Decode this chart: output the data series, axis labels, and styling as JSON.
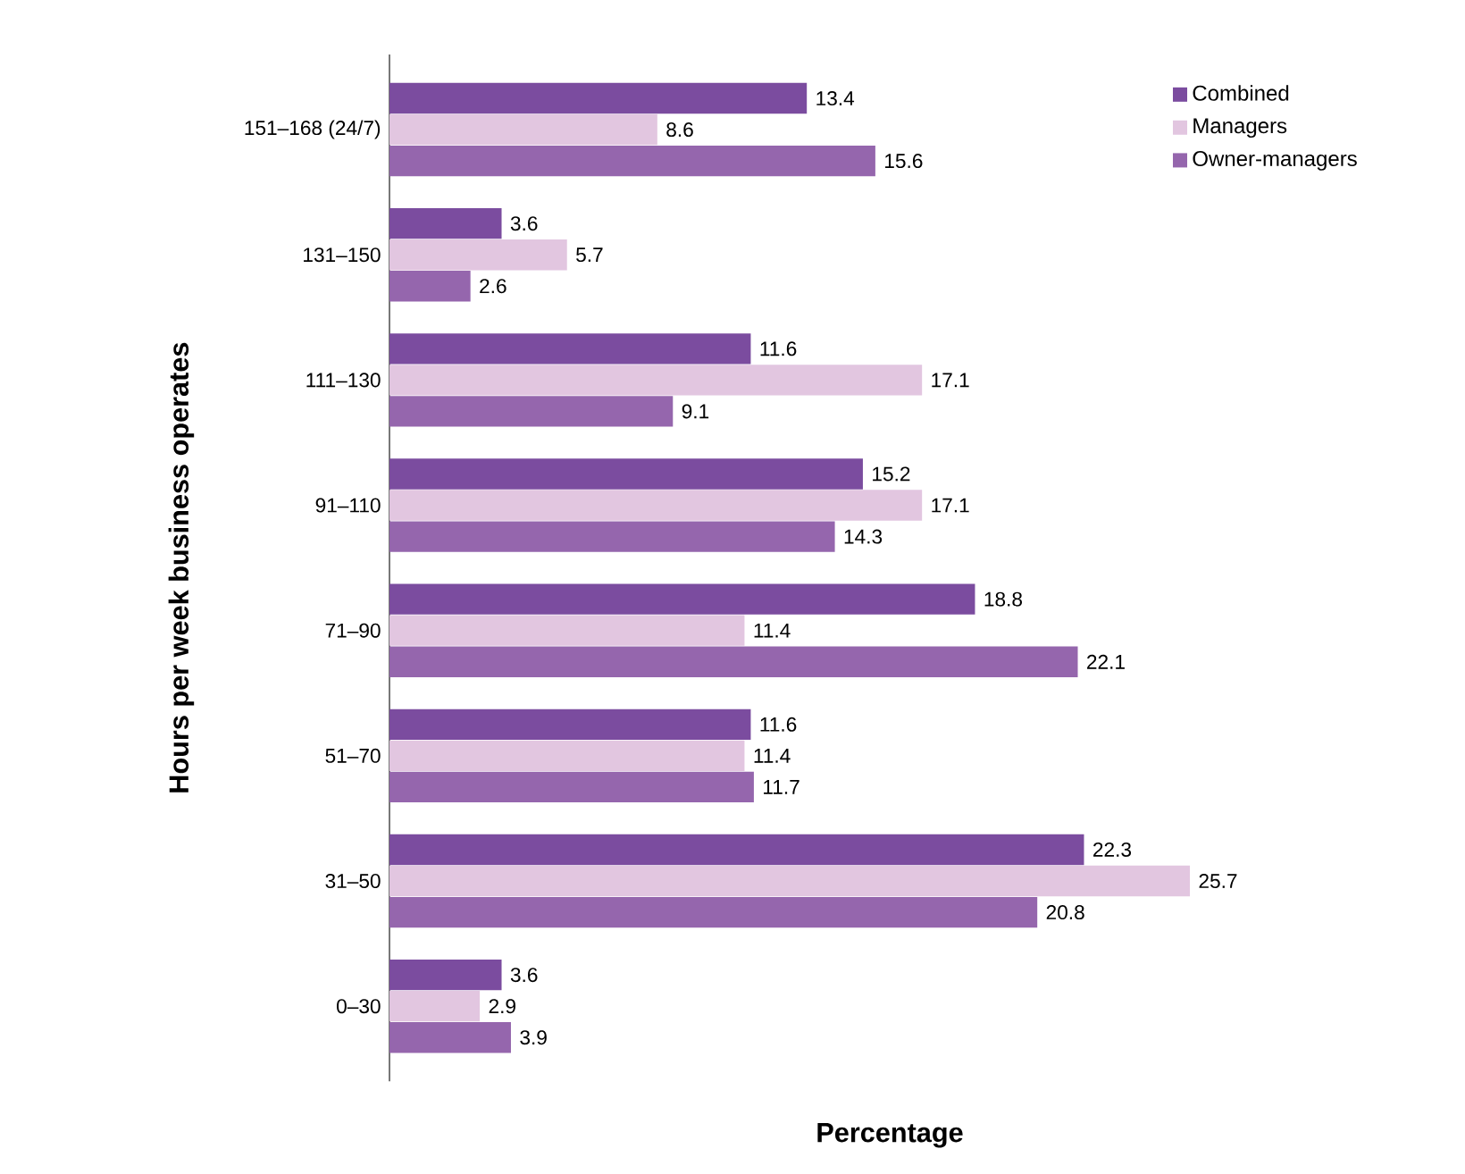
{
  "chart_data": {
    "type": "bar",
    "orientation": "horizontal",
    "ylabel": "Hours per week business operates",
    "xlabel": "Percentage",
    "categories": [
      "151–168 (24/7)",
      "131–150",
      "111–130",
      "91–110",
      "71–90",
      "51–70",
      "31–50",
      "0–30"
    ],
    "series": [
      {
        "name": "Combined",
        "color": "#7b4c9f",
        "values": [
          13.4,
          3.6,
          11.6,
          15.2,
          18.8,
          11.6,
          22.3,
          3.6
        ]
      },
      {
        "name": "Managers",
        "color": "#e2c6e0",
        "values": [
          8.6,
          5.7,
          17.1,
          17.1,
          11.4,
          11.4,
          25.7,
          2.9
        ]
      },
      {
        "name": "Owner-managers",
        "color": "#9566ad",
        "values": [
          15.6,
          2.6,
          9.1,
          14.3,
          22.1,
          11.7,
          20.8,
          3.9
        ]
      }
    ],
    "data_labels": true,
    "legend": "top right"
  }
}
